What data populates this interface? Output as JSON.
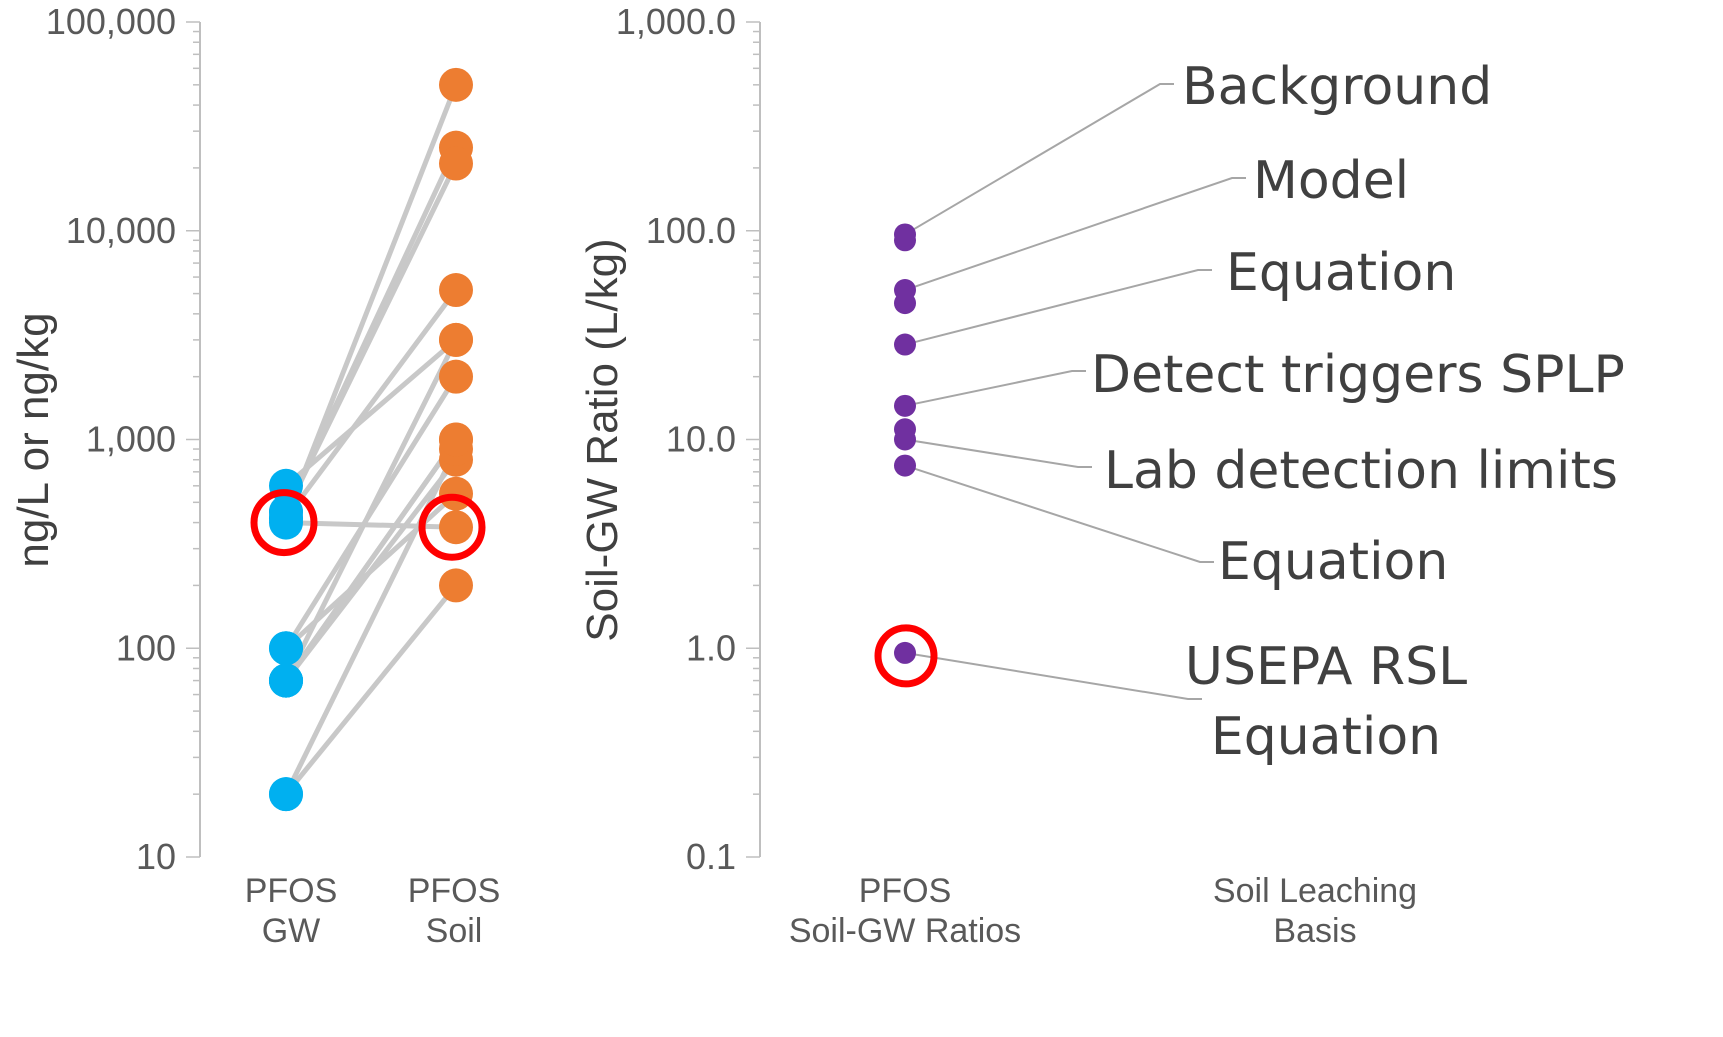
{
  "chart_data": [
    {
      "type": "scatter",
      "ylabel": "ng/L or ng/kg",
      "yscale": "log",
      "ylim": [
        10,
        100000
      ],
      "yticks": [
        "100,000",
        "10,000",
        "1,000",
        "100",
        "10"
      ],
      "categories": [
        {
          "line1": "PFOS",
          "line2": "GW"
        },
        {
          "line1": "PFOS",
          "line2": "Soil"
        }
      ],
      "colors": {
        "gw": "#00b0f0",
        "soil": "#ed7d31",
        "connector": "#c8c8c8",
        "highlight": "#ff0000"
      },
      "pairs": [
        {
          "gw": 420,
          "soil": 50000
        },
        {
          "gw": 450,
          "soil": 25000
        },
        {
          "gw": 450,
          "soil": 21000
        },
        {
          "gw": 420,
          "soil": 5200
        },
        {
          "gw": 100,
          "soil": 2000
        },
        {
          "gw": 70,
          "soil": 3000
        },
        {
          "gw": 70,
          "soil": 1000
        },
        {
          "gw": 400,
          "soil": 380
        },
        {
          "gw": 600,
          "soil": 3000
        },
        {
          "gw": 70,
          "soil": 800
        },
        {
          "gw": 100,
          "soil": 550
        },
        {
          "gw": 20,
          "soil": 900
        },
        {
          "gw": 70,
          "soil": 1000
        },
        {
          "gw": 20,
          "soil": 200
        }
      ],
      "highlight": {
        "gw": 400,
        "soil": 380
      }
    },
    {
      "type": "scatter",
      "ylabel": "Soil-GW Ratio (L/kg)",
      "yscale": "log",
      "ylim": [
        0.1,
        1000
      ],
      "yticks": [
        "1,000.0",
        "100.0",
        "10.0",
        "1.0",
        "0.1"
      ],
      "categories": [
        {
          "line1": "PFOS",
          "line2": "Soil-GW Ratios"
        },
        {
          "line1": "Soil Leaching",
          "line2": "Basis"
        }
      ],
      "colors": {
        "points": "#7030a0",
        "leader": "#a6a6a6",
        "highlight": "#ff0000"
      },
      "points": [
        {
          "value": 96,
          "annotation": 0
        },
        {
          "value": 90,
          "annotation": null
        },
        {
          "value": 52,
          "annotation": 1
        },
        {
          "value": 45,
          "annotation": null
        },
        {
          "value": 28.5,
          "annotation": 2
        },
        {
          "value": 14.5,
          "annotation": 3
        },
        {
          "value": 11.2,
          "annotation": null
        },
        {
          "value": 10.0,
          "annotation": 4
        },
        {
          "value": 7.5,
          "annotation": 5
        },
        {
          "value": 0.95,
          "annotation": 6
        }
      ],
      "annotations": [
        {
          "lines": [
            "Background"
          ]
        },
        {
          "lines": [
            "Model"
          ]
        },
        {
          "lines": [
            "Equation"
          ]
        },
        {
          "lines": [
            "Detect triggers SPLP"
          ]
        },
        {
          "lines": [
            "Lab detection limits"
          ]
        },
        {
          "lines": [
            "Equation"
          ]
        },
        {
          "lines": [
            "USEPA RSL",
            "Equation"
          ]
        }
      ],
      "highlight": {
        "value": 0.95
      }
    }
  ]
}
